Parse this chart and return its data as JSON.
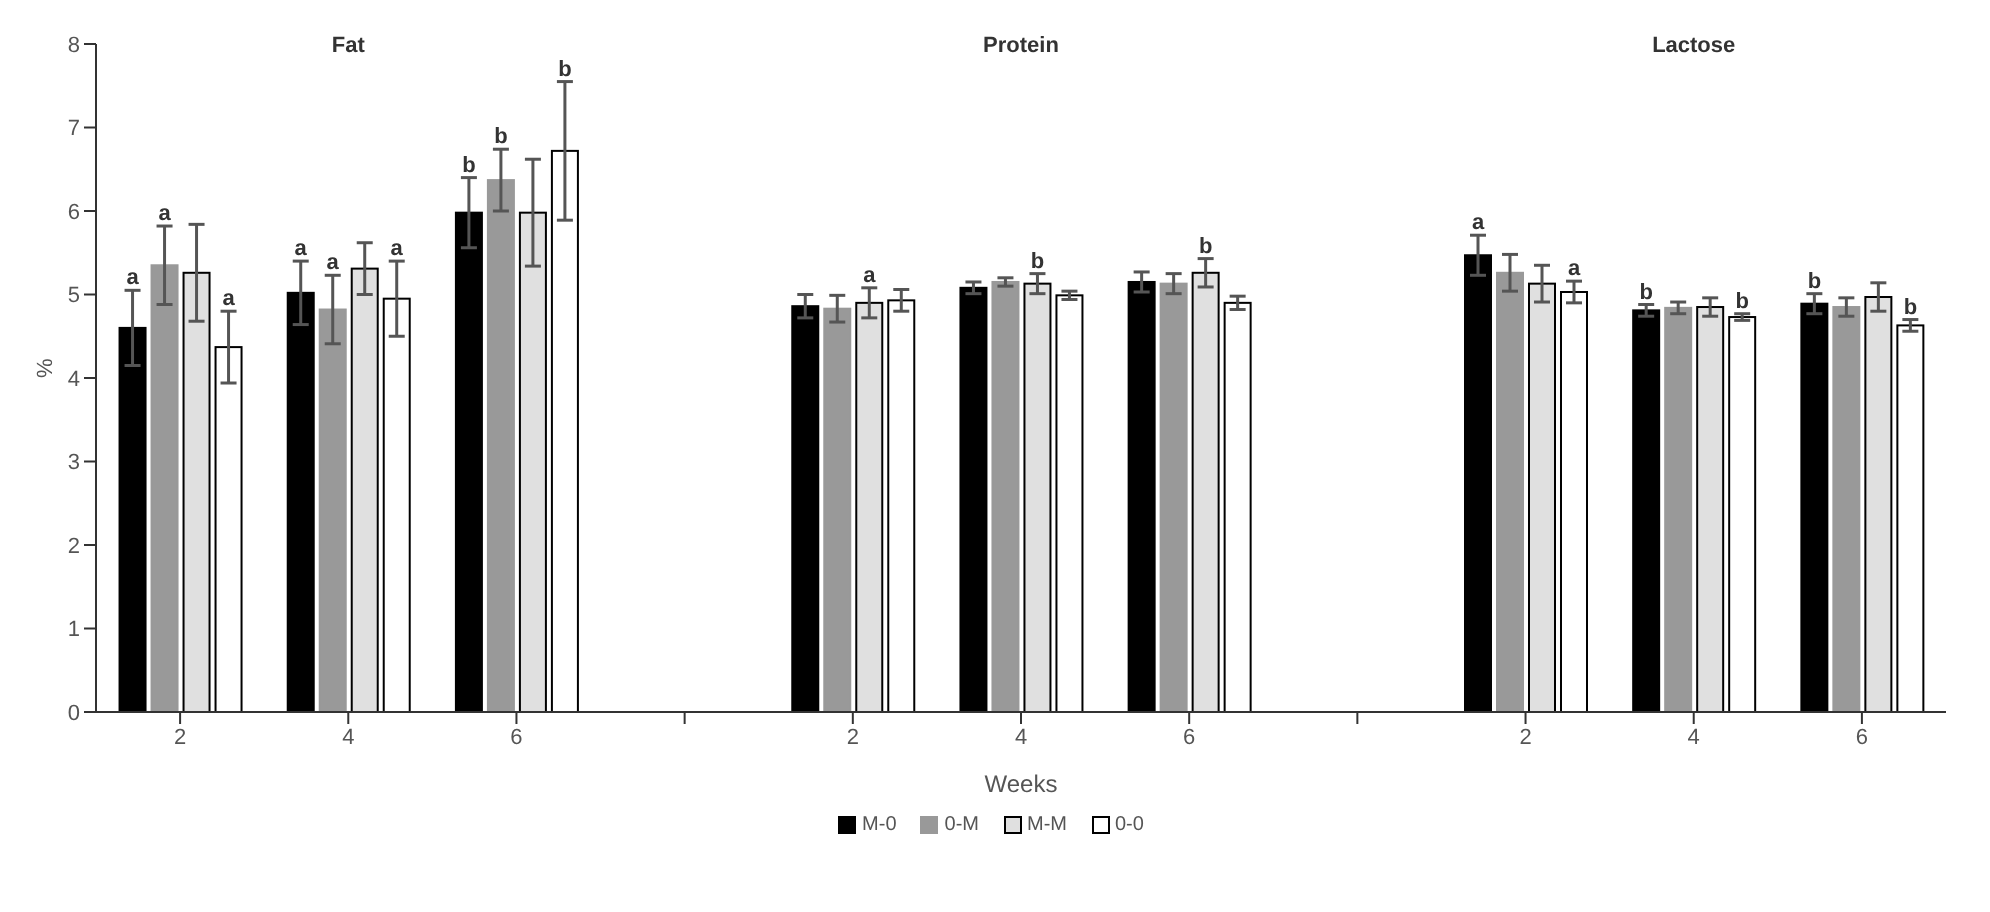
{
  "chart_data": {
    "type": "bar",
    "xlabel": "Weeks",
    "ylabel": "%",
    "categories": [
      "2",
      "4",
      "6",
      null,
      "2",
      "4",
      "6",
      null,
      "2",
      "4",
      "6"
    ],
    "series": [
      {
        "name": "M-0",
        "color": "#000000",
        "values": [
          4.6,
          5.02,
          5.98,
          null,
          4.86,
          5.08,
          5.15,
          null,
          5.47,
          4.81,
          4.89
        ],
        "errors": [
          0.45,
          0.38,
          0.42,
          null,
          0.14,
          0.07,
          0.12,
          null,
          0.24,
          0.07,
          0.12
        ],
        "value_labels": [
          "a",
          "a",
          "b",
          null,
          null,
          null,
          null,
          null,
          "a",
          "b",
          "b"
        ]
      },
      {
        "name": "0-M",
        "color": "#999999",
        "values": [
          5.35,
          4.82,
          6.37,
          null,
          4.83,
          5.15,
          5.13,
          null,
          5.26,
          4.84,
          4.85
        ],
        "errors": [
          0.47,
          0.41,
          0.37,
          null,
          0.16,
          0.05,
          0.12,
          null,
          0.22,
          0.07,
          0.11
        ],
        "value_labels": [
          "a",
          "a",
          "b",
          null,
          null,
          null,
          null,
          null,
          null,
          null,
          null
        ]
      },
      {
        "name": "M-M",
        "color": "#e0e0e0",
        "values": [
          5.26,
          5.31,
          5.98,
          null,
          4.9,
          5.13,
          5.26,
          null,
          5.13,
          4.85,
          4.97
        ],
        "errors": [
          0.58,
          0.31,
          0.64,
          null,
          0.18,
          0.12,
          0.17,
          null,
          0.22,
          0.11,
          0.17
        ],
        "value_labels": [
          null,
          null,
          null,
          null,
          "a",
          "b",
          "b",
          null,
          null,
          null,
          null
        ]
      },
      {
        "name": "0-0",
        "color": "#ffffff",
        "values": [
          4.37,
          4.95,
          6.72,
          null,
          4.93,
          4.99,
          4.9,
          null,
          5.03,
          4.73,
          4.63
        ],
        "errors": [
          0.43,
          0.45,
          0.83,
          null,
          0.13,
          0.05,
          0.08,
          null,
          0.13,
          0.04,
          0.07
        ],
        "value_labels": [
          "a",
          "a",
          "b",
          null,
          null,
          null,
          null,
          null,
          "a",
          "b",
          "b"
        ]
      }
    ],
    "annotations": [
      "Fat",
      "Protein",
      "Lactose"
    ],
    "ylim": [
      0,
      8
    ],
    "yticks": [
      0,
      1,
      2,
      3,
      4,
      5,
      6,
      7,
      8
    ],
    "grid": false,
    "legend": "bottom"
  }
}
